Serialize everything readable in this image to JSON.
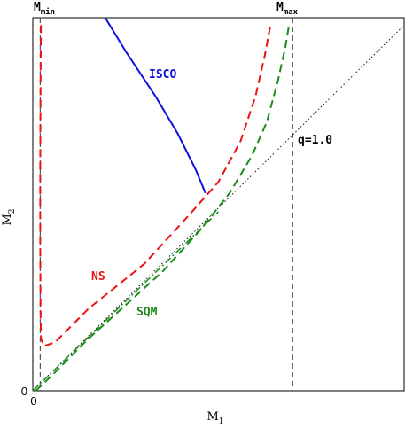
{
  "chart_data": {
    "type": "line",
    "title": "",
    "xlabel": "M",
    "xlabel_sub": "1",
    "ylabel": "M",
    "ylabel_sub": "2",
    "x_tick_labels": [
      "0"
    ],
    "y_tick_labels": [
      "0"
    ],
    "grid": false,
    "legend": "none",
    "top_labels": [
      {
        "text": "M",
        "sub": "min"
      },
      {
        "text": "M",
        "sub": "max"
      }
    ],
    "annotations": {
      "q_label": "q=1.0",
      "isco_label": "ISCO",
      "ns_label": "NS",
      "sqm_label": "SQM"
    },
    "colors": {
      "isco": "#1010dd",
      "ns": "#ee1111",
      "sqm": "#1a8a1a",
      "axes": "#000000",
      "mass_limits": "#555555"
    },
    "series": [
      {
        "name": "ISCO",
        "style": "solid",
        "color": "#1010dd",
        "points": [
          [
            0.195,
            1.0
          ],
          [
            0.25,
            0.91
          ],
          [
            0.33,
            0.79
          ],
          [
            0.39,
            0.69
          ],
          [
            0.44,
            0.59
          ],
          [
            0.465,
            0.53
          ]
        ]
      },
      {
        "name": "NS",
        "style": "dashed",
        "color": "#ee1111",
        "points": [
          [
            0.022,
            0.98
          ],
          [
            0.021,
            0.85
          ],
          [
            0.02,
            0.6
          ],
          [
            0.02,
            0.4
          ],
          [
            0.021,
            0.2
          ],
          [
            0.022,
            0.14
          ],
          [
            0.03,
            0.12
          ],
          [
            0.06,
            0.13
          ],
          [
            0.15,
            0.22
          ],
          [
            0.3,
            0.34
          ],
          [
            0.42,
            0.47
          ],
          [
            0.5,
            0.56
          ],
          [
            0.56,
            0.67
          ],
          [
            0.6,
            0.79
          ],
          [
            0.625,
            0.9
          ],
          [
            0.64,
            0.98
          ]
        ]
      },
      {
        "name": "SQM",
        "style": "dashed",
        "color": "#1a8a1a",
        "points": [
          [
            0.008,
            0.0
          ],
          [
            0.05,
            0.04
          ],
          [
            0.15,
            0.14
          ],
          [
            0.25,
            0.23
          ],
          [
            0.35,
            0.32
          ],
          [
            0.45,
            0.43
          ],
          [
            0.53,
            0.53
          ],
          [
            0.59,
            0.63
          ],
          [
            0.63,
            0.72
          ],
          [
            0.66,
            0.83
          ],
          [
            0.68,
            0.92
          ],
          [
            0.69,
            0.98
          ]
        ]
      },
      {
        "name": "",
        "style": "dashdot",
        "color": "#1a8a1a",
        "points": [
          [
            0.0,
            0.0
          ],
          [
            0.5,
            0.48
          ]
        ]
      }
    ],
    "reference_lines": {
      "equal_mass_line": {
        "slope": 1.0,
        "style": "dotted",
        "from": [
          0.0,
          0.0
        ],
        "to": [
          1.0,
          0.98
        ]
      },
      "m_min": 0.02,
      "m_max": 0.7
    },
    "xlim": [
      0,
      1
    ],
    "ylim": [
      0,
      1
    ]
  }
}
